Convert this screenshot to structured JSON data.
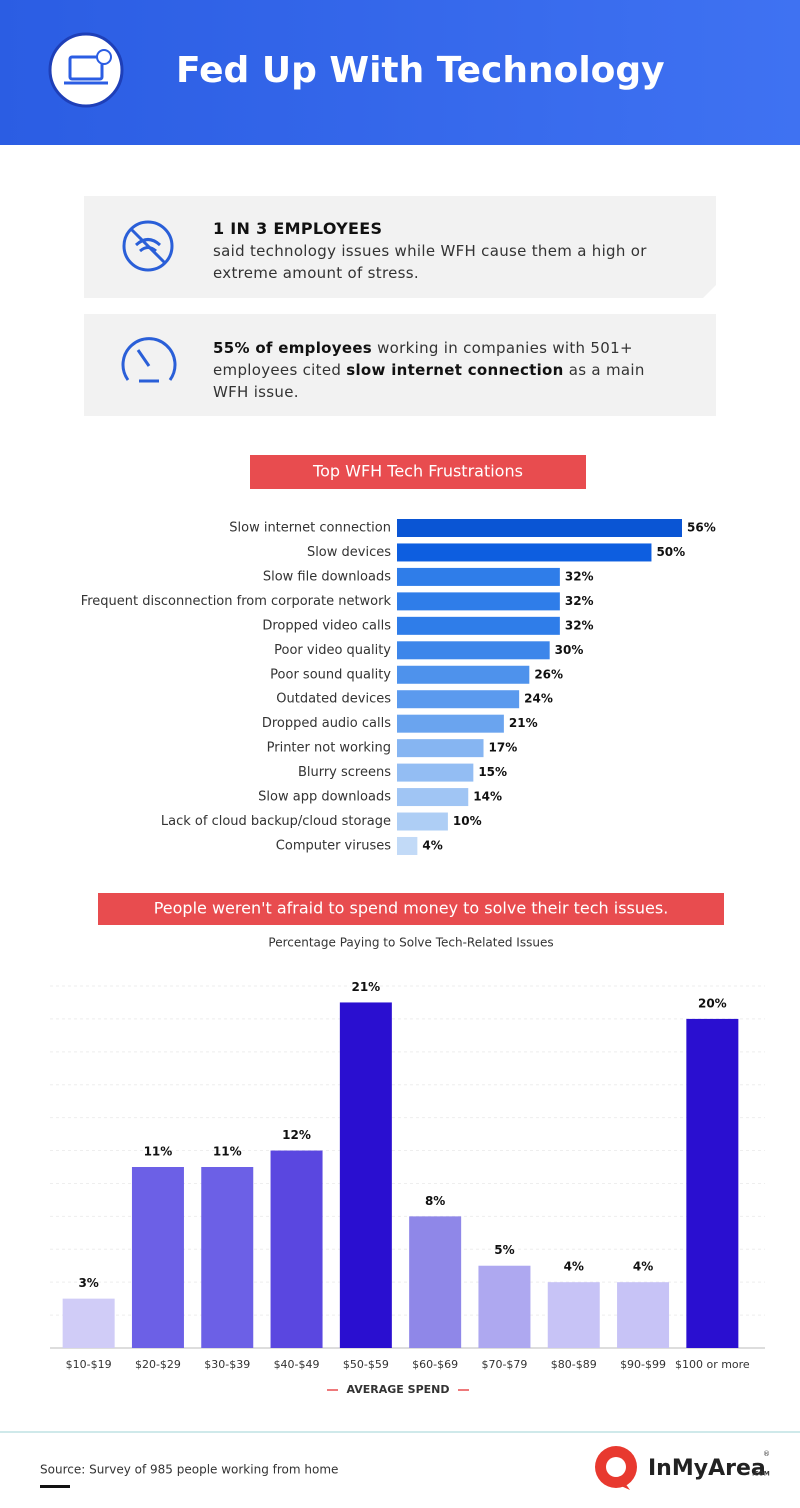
{
  "header": {
    "title": "Fed Up With Technology"
  },
  "stats": [
    {
      "heading": "1 IN 3 EMPLOYEES",
      "text": "said technology issues while WFH cause them a high or extreme amount of stress."
    },
    {
      "segments": [
        {
          "text": "55% of employees",
          "bold": true
        },
        {
          "text": " working in companies with 501+ employees cited ",
          "bold": false
        },
        {
          "text": "slow internet connection",
          "bold": true
        },
        {
          "text": " as a main WFH issue.",
          "bold": false
        }
      ]
    }
  ],
  "chart_data": [
    {
      "type": "bar",
      "orientation": "horizontal",
      "title": "Top WFH Tech Frustrations",
      "categories": [
        "Slow internet connection",
        "Slow devices",
        "Slow file downloads",
        "Frequent disconnection from corporate network",
        "Dropped video calls",
        "Poor video quality",
        "Poor sound quality",
        "Outdated devices",
        "Dropped audio calls",
        "Printer not working",
        "Blurry screens",
        "Slow app downloads",
        "Lack of cloud backup/cloud storage",
        "Computer viruses"
      ],
      "values": [
        56,
        50,
        32,
        32,
        32,
        30,
        26,
        24,
        21,
        17,
        15,
        14,
        10,
        4
      ],
      "value_labels": [
        "56%",
        "50%",
        "32%",
        "32%",
        "32%",
        "30%",
        "26%",
        "24%",
        "21%",
        "17%",
        "15%",
        "14%",
        "10%",
        "4%"
      ],
      "colors": [
        "#0a55d4",
        "#0d5ee0",
        "#2f7de9",
        "#2f7de9",
        "#2f7de9",
        "#3d86ea",
        "#4e92ec",
        "#5b9aee",
        "#6aa4ef",
        "#86b5f2",
        "#93bdf3",
        "#a0c5f4",
        "#aecef5",
        "#c2daf7"
      ]
    },
    {
      "type": "bar",
      "orientation": "vertical",
      "title": "People weren't afraid to spend money to solve their tech issues.",
      "subtitle": "Percentage Paying to Solve Tech-Related Issues",
      "xlabel": "AVERAGE SPEND",
      "categories": [
        "$10-$19",
        "$20-$29",
        "$30-$39",
        "$40-$49",
        "$50-$59",
        "$60-$69",
        "$70-$79",
        "$80-$89",
        "$90-$99",
        "$100 or more"
      ],
      "values": [
        3,
        11,
        11,
        12,
        21,
        8,
        5,
        4,
        4,
        20
      ],
      "value_labels": [
        "3%",
        "11%",
        "11%",
        "12%",
        "21%",
        "8%",
        "5%",
        "4%",
        "4%",
        "20%"
      ],
      "colors": [
        "#d0ccf7",
        "#6c60e6",
        "#6c60e6",
        "#5a47e0",
        "#2a0fd0",
        "#8f87e8",
        "#aea8f0",
        "#c7c3f6",
        "#c7c3f6",
        "#2a0fd0"
      ],
      "ylim": [
        0,
        22
      ]
    }
  ],
  "footer": {
    "source": "Source: Survey of 985 people working from home",
    "logo": "InMyArea",
    "logo_suffix": ".COM",
    "logo_mark": "®"
  }
}
